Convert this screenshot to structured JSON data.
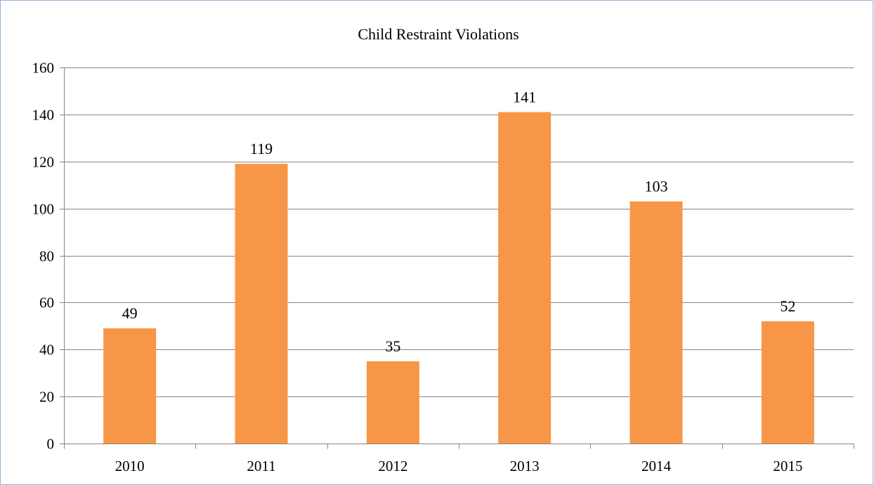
{
  "chart_data": {
    "type": "bar",
    "title": "Child Restraint Violations",
    "xlabel": "",
    "ylabel": "",
    "categories": [
      "2010",
      "2011",
      "2012",
      "2013",
      "2014",
      "2015"
    ],
    "values": [
      49,
      119,
      35,
      141,
      103,
      52
    ],
    "ylim": [
      0,
      160
    ],
    "yticks": [
      0,
      20,
      40,
      60,
      80,
      100,
      120,
      140,
      160
    ],
    "grid": true,
    "legend": "none",
    "data_labels": true
  },
  "colors": {
    "bar": "#f79646",
    "gridline": "#868686",
    "axis": "#868686",
    "frame_border": "#95b3d7",
    "text": "#000000"
  }
}
